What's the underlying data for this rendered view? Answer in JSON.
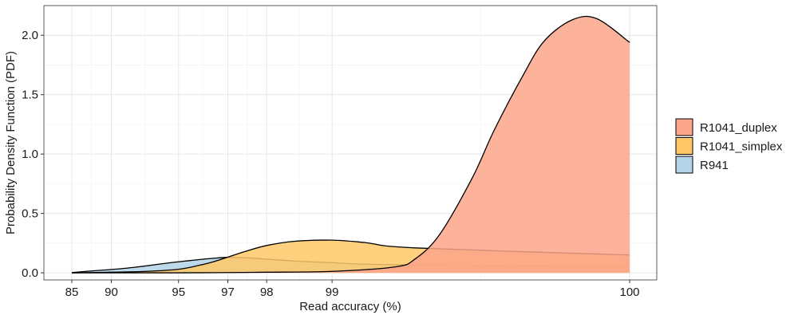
{
  "chart_data": {
    "type": "area",
    "xlabel": "Read accuracy (%)",
    "ylabel": "Probability Density Function (PDF)",
    "xlim": [
      84.3,
      101.4
    ],
    "ylim": [
      -0.06,
      2.25
    ],
    "x_scale": "log-error",
    "x_ticks": [
      85,
      90,
      95,
      97,
      98,
      99,
      100
    ],
    "x_tick_labels": [
      "85",
      "90",
      "95",
      "97",
      "98",
      "99",
      "100"
    ],
    "y_ticks": [
      0,
      0.5,
      1.0,
      1.5,
      2.0
    ],
    "y_tick_labels": [
      "0.0",
      "0.5",
      "1.0",
      "1.5",
      "2.0"
    ],
    "grid": true,
    "legend_position": "right",
    "series": [
      {
        "name": "R941",
        "color": "#B3D4E6",
        "x": [
          85,
          87,
          89,
          90,
          91,
          92,
          93,
          94,
          95,
          96,
          96.5,
          97,
          97.5,
          98,
          98.5,
          99,
          99.5,
          100
        ],
        "y": [
          0.002,
          0.012,
          0.022,
          0.028,
          0.035,
          0.045,
          0.058,
          0.075,
          0.093,
          0.112,
          0.122,
          0.13,
          0.127,
          0.115,
          0.1,
          0.085,
          0.068,
          0.053
        ]
      },
      {
        "name": "R1041_simplex",
        "color": "#FFC867",
        "x": [
          85,
          90,
          93,
          95,
          96,
          96.5,
          97,
          97.5,
          98,
          98.5,
          99,
          99.3,
          99.6,
          100
        ],
        "y": [
          0.0,
          0.005,
          0.012,
          0.03,
          0.065,
          0.092,
          0.132,
          0.18,
          0.23,
          0.265,
          0.275,
          0.255,
          0.21,
          0.15
        ]
      },
      {
        "name": "R1041_duplex",
        "color": "#FCA58A",
        "x": [
          85,
          95,
          97,
          98,
          99,
          99.5,
          99.6,
          99.7,
          99.8,
          99.85,
          99.9,
          99.93,
          99.96,
          99.98,
          100
        ],
        "y": [
          0.0,
          0.0,
          0.002,
          0.005,
          0.012,
          0.05,
          0.115,
          0.32,
          0.8,
          1.2,
          1.65,
          1.95,
          2.13,
          2.14,
          1.94
        ]
      }
    ]
  }
}
